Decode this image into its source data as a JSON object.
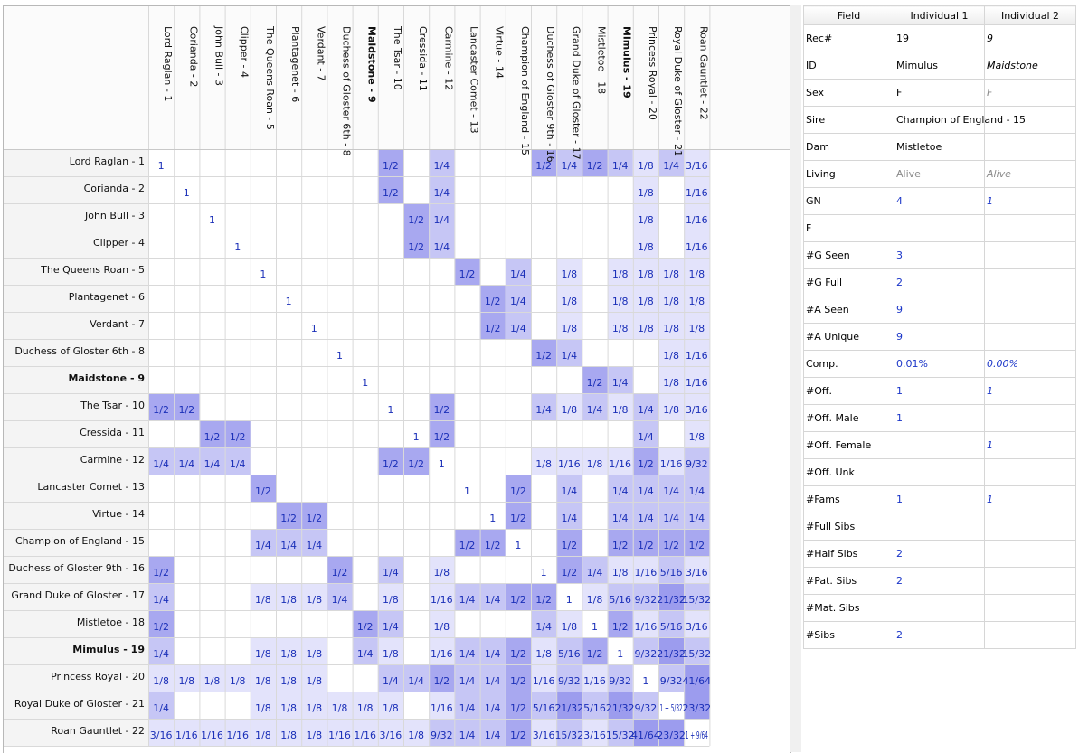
{
  "colors": {
    "cell_dark": "#a8a8f0",
    "cell_mid": "#c6c6f5",
    "cell_light": "#e3e3fb",
    "cell_text": "#1a2fb8",
    "header_bg": "#f4f4f4",
    "grid": "#d9d9d9",
    "detail_num": "#1a35c8"
  },
  "matrix": {
    "bold_index": [
      9,
      19
    ],
    "labels": [
      "Lord Raglan - 1",
      "Corianda - 2",
      "John Bull - 3",
      "Clipper - 4",
      "The Queens Roan - 5",
      "Plantagenet - 6",
      "Verdant - 7",
      "Duchess of Gloster 6th - 8",
      "Maidstone - 9",
      "The Tsar - 10",
      "Cressida - 11",
      "Carmine - 12",
      "Lancaster Comet - 13",
      "Virtue - 14",
      "Champion of England - 15",
      "Duchess of Gloster 9th - 16",
      "Grand Duke of Gloster - 17",
      "Mistletoe - 18",
      "Mimulus - 19",
      "Princess Royal - 20",
      "Royal Duke of Gloster - 21",
      "Roan Gauntlet - 22"
    ],
    "rows": [
      [
        "1",
        "",
        "",
        "",
        "",
        "",
        "",
        "",
        "",
        "1/2",
        "",
        "1/4",
        "",
        "",
        "",
        "1/2",
        "1/4",
        "1/2",
        "1/4",
        "1/8",
        "1/4",
        "3/16"
      ],
      [
        "",
        "1",
        "",
        "",
        "",
        "",
        "",
        "",
        "",
        "1/2",
        "",
        "1/4",
        "",
        "",
        "",
        "",
        "",
        "",
        "",
        "1/8",
        "",
        "1/16"
      ],
      [
        "",
        "",
        "1",
        "",
        "",
        "",
        "",
        "",
        "",
        "",
        "1/2",
        "1/4",
        "",
        "",
        "",
        "",
        "",
        "",
        "",
        "1/8",
        "",
        "1/16"
      ],
      [
        "",
        "",
        "",
        "1",
        "",
        "",
        "",
        "",
        "",
        "",
        "1/2",
        "1/4",
        "",
        "",
        "",
        "",
        "",
        "",
        "",
        "1/8",
        "",
        "1/16"
      ],
      [
        "",
        "",
        "",
        "",
        "1",
        "",
        "",
        "",
        "",
        "",
        "",
        "",
        "1/2",
        "",
        "1/4",
        "",
        "1/8",
        "",
        "1/8",
        "1/8",
        "1/8",
        "1/8"
      ],
      [
        "",
        "",
        "",
        "",
        "",
        "1",
        "",
        "",
        "",
        "",
        "",
        "",
        "",
        "1/2",
        "1/4",
        "",
        "1/8",
        "",
        "1/8",
        "1/8",
        "1/8",
        "1/8"
      ],
      [
        "",
        "",
        "",
        "",
        "",
        "",
        "1",
        "",
        "",
        "",
        "",
        "",
        "",
        "1/2",
        "1/4",
        "",
        "1/8",
        "",
        "1/8",
        "1/8",
        "1/8",
        "1/8"
      ],
      [
        "",
        "",
        "",
        "",
        "",
        "",
        "",
        "1",
        "",
        "",
        "",
        "",
        "",
        "",
        "",
        "1/2",
        "1/4",
        "",
        "",
        "",
        "1/8",
        "1/16"
      ],
      [
        "",
        "",
        "",
        "",
        "",
        "",
        "",
        "",
        "1",
        "",
        "",
        "",
        "",
        "",
        "",
        "",
        "",
        "1/2",
        "1/4",
        "",
        "1/8",
        "1/16"
      ],
      [
        "1/2",
        "1/2",
        "",
        "",
        "",
        "",
        "",
        "",
        "",
        "1",
        "",
        "1/2",
        "",
        "",
        "",
        "1/4",
        "1/8",
        "1/4",
        "1/8",
        "1/4",
        "1/8",
        "3/16"
      ],
      [
        "",
        "",
        "1/2",
        "1/2",
        "",
        "",
        "",
        "",
        "",
        "",
        "1",
        "1/2",
        "",
        "",
        "",
        "",
        "",
        "",
        "",
        "1/4",
        "",
        "1/8"
      ],
      [
        "1/4",
        "1/4",
        "1/4",
        "1/4",
        "",
        "",
        "",
        "",
        "",
        "1/2",
        "1/2",
        "1",
        "",
        "",
        "",
        "1/8",
        "1/16",
        "1/8",
        "1/16",
        "1/2",
        "1/16",
        "9/32"
      ],
      [
        "",
        "",
        "",
        "",
        "1/2",
        "",
        "",
        "",
        "",
        "",
        "",
        "",
        "1",
        "",
        "1/2",
        "",
        "1/4",
        "",
        "1/4",
        "1/4",
        "1/4",
        "1/4"
      ],
      [
        "",
        "",
        "",
        "",
        "",
        "1/2",
        "1/2",
        "",
        "",
        "",
        "",
        "",
        "",
        "1",
        "1/2",
        "",
        "1/4",
        "",
        "1/4",
        "1/4",
        "1/4",
        "1/4"
      ],
      [
        "",
        "",
        "",
        "",
        "1/4",
        "1/4",
        "1/4",
        "",
        "",
        "",
        "",
        "",
        "1/2",
        "1/2",
        "1",
        "",
        "1/2",
        "",
        "1/2",
        "1/2",
        "1/2",
        "1/2"
      ],
      [
        "1/2",
        "",
        "",
        "",
        "",
        "",
        "",
        "1/2",
        "",
        "1/4",
        "",
        "1/8",
        "",
        "",
        "",
        "1",
        "1/2",
        "1/4",
        "1/8",
        "1/16",
        "5/16",
        "3/16"
      ],
      [
        "1/4",
        "",
        "",
        "",
        "1/8",
        "1/8",
        "1/8",
        "1/4",
        "",
        "1/8",
        "",
        "1/16",
        "1/4",
        "1/4",
        "1/2",
        "1/2",
        "1",
        "1/8",
        "5/16",
        "9/32",
        "21/32",
        "15/32"
      ],
      [
        "1/2",
        "",
        "",
        "",
        "",
        "",
        "",
        "",
        "1/2",
        "1/4",
        "",
        "1/8",
        "",
        "",
        "",
        "1/4",
        "1/8",
        "1",
        "1/2",
        "1/16",
        "5/16",
        "3/16"
      ],
      [
        "1/4",
        "",
        "",
        "",
        "1/8",
        "1/8",
        "1/8",
        "",
        "1/4",
        "1/8",
        "",
        "1/16",
        "1/4",
        "1/4",
        "1/2",
        "1/8",
        "5/16",
        "1/2",
        "1",
        "9/32",
        "21/32",
        "15/32"
      ],
      [
        "1/8",
        "1/8",
        "1/8",
        "1/8",
        "1/8",
        "1/8",
        "1/8",
        "",
        "",
        "1/4",
        "1/4",
        "1/2",
        "1/4",
        "1/4",
        "1/2",
        "1/16",
        "9/32",
        "1/16",
        "9/32",
        "1",
        "9/32",
        "41/64"
      ],
      [
        "1/4",
        "",
        "",
        "",
        "1/8",
        "1/8",
        "1/8",
        "1/8",
        "1/8",
        "1/8",
        "",
        "1/16",
        "1/4",
        "1/4",
        "1/2",
        "5/16",
        "21/32",
        "5/16",
        "21/32",
        "9/32",
        "1 + 5/32",
        "23/32"
      ],
      [
        "3/16",
        "1/16",
        "1/16",
        "1/16",
        "1/8",
        "1/8",
        "1/8",
        "1/16",
        "1/16",
        "3/16",
        "1/8",
        "9/32",
        "1/4",
        "1/4",
        "1/2",
        "3/16",
        "15/32",
        "3/16",
        "15/32",
        "41/64",
        "23/32",
        "1 + 9/64"
      ]
    ]
  },
  "detail": {
    "headers": [
      "Field",
      "Individual 1",
      "Individual 2"
    ],
    "rows": [
      {
        "field": "Rec#",
        "ind1": "19",
        "ind2": "9",
        "c1": "",
        "c2": "it"
      },
      {
        "field": "ID",
        "ind1": "Mimulus",
        "ind2": "Maidstone",
        "c1": "",
        "c2": "it"
      },
      {
        "field": "Sex",
        "ind1": "F",
        "ind2": "F",
        "c1": "",
        "c2": "it gray"
      },
      {
        "field": "Sire",
        "ind1": "Champion of England - 15",
        "ind2": "",
        "c1": "",
        "c2": ""
      },
      {
        "field": "Dam",
        "ind1": "Mistletoe",
        "ind2": "",
        "c1": "",
        "c2": ""
      },
      {
        "field": "Living",
        "ind1": "Alive",
        "ind2": "Alive",
        "c1": "gray",
        "c2": "it gray"
      },
      {
        "field": "GN",
        "ind1": "4",
        "ind2": "1",
        "c1": "num",
        "c2": "num it"
      },
      {
        "field": "F",
        "ind1": "",
        "ind2": "",
        "c1": "",
        "c2": ""
      },
      {
        "field": "#G Seen",
        "ind1": "3",
        "ind2": "",
        "c1": "num",
        "c2": ""
      },
      {
        "field": "#G Full",
        "ind1": "2",
        "ind2": "",
        "c1": "num",
        "c2": ""
      },
      {
        "field": "#A Seen",
        "ind1": "9",
        "ind2": "",
        "c1": "num",
        "c2": ""
      },
      {
        "field": "#A Unique",
        "ind1": "9",
        "ind2": "",
        "c1": "num",
        "c2": ""
      },
      {
        "field": "Comp.",
        "ind1": "0.01%",
        "ind2": "0.00%",
        "c1": "num",
        "c2": "num it"
      },
      {
        "field": "#Off.",
        "ind1": "1",
        "ind2": "1",
        "c1": "num",
        "c2": "num it"
      },
      {
        "field": "#Off. Male",
        "ind1": "1",
        "ind2": "",
        "c1": "num",
        "c2": ""
      },
      {
        "field": "#Off. Female",
        "ind1": "",
        "ind2": "1",
        "c1": "",
        "c2": "num it"
      },
      {
        "field": "#Off. Unk",
        "ind1": "",
        "ind2": "",
        "c1": "",
        "c2": ""
      },
      {
        "field": "#Fams",
        "ind1": "1",
        "ind2": "1",
        "c1": "num",
        "c2": "num it"
      },
      {
        "field": "#Full Sibs",
        "ind1": "",
        "ind2": "",
        "c1": "",
        "c2": ""
      },
      {
        "field": "#Half Sibs",
        "ind1": "2",
        "ind2": "",
        "c1": "num",
        "c2": ""
      },
      {
        "field": "#Pat. Sibs",
        "ind1": "2",
        "ind2": "",
        "c1": "num",
        "c2": ""
      },
      {
        "field": "#Mat. Sibs",
        "ind1": "",
        "ind2": "",
        "c1": "",
        "c2": ""
      },
      {
        "field": "#Sibs",
        "ind1": "2",
        "ind2": "",
        "c1": "num",
        "c2": ""
      }
    ]
  }
}
